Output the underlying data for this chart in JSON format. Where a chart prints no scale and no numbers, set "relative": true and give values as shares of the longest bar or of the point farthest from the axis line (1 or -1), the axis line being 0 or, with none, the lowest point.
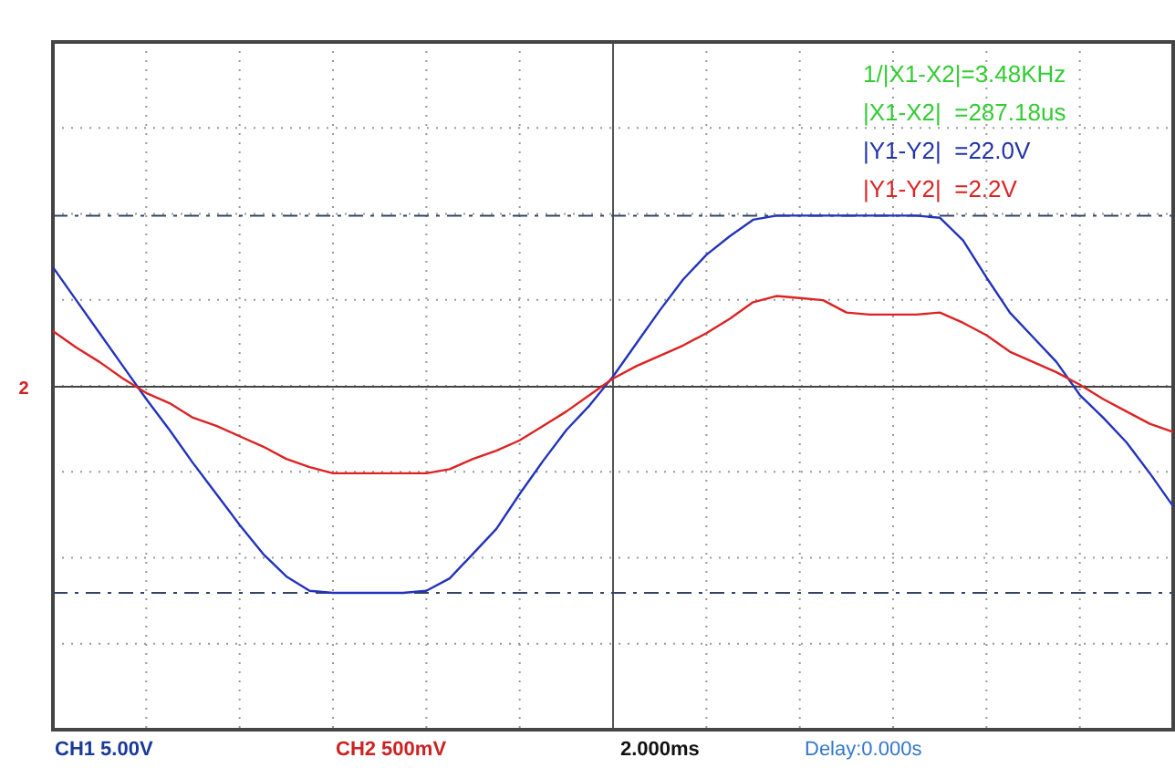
{
  "chart_data": {
    "type": "line",
    "relative": true,
    "grid": true,
    "marker": "none",
    "line_style": "solid",
    "categories": [
      null,
      null,
      null,
      null,
      null,
      null,
      null,
      null,
      null,
      null,
      null,
      null,
      null,
      null,
      null,
      null,
      null,
      null,
      null,
      null,
      null,
      null,
      null,
      null,
      null,
      null,
      null,
      null,
      null,
      null,
      null,
      null,
      null,
      null,
      null,
      null,
      null,
      null,
      null,
      null,
      null,
      null,
      null,
      null,
      null,
      null,
      null,
      null,
      null
    ],
    "series": [
      {
        "color": "#2233bb",
        "values": [
          0.58,
          0.42,
          0.26,
          0.1,
          -0.06,
          -0.21,
          -0.37,
          -0.52,
          -0.67,
          -0.81,
          -0.92,
          -0.99,
          -1,
          -1,
          -1,
          -1,
          -0.99,
          -0.93,
          -0.81,
          -0.69,
          -0.52,
          -0.36,
          -0.21,
          -0.09,
          0.05,
          0.21,
          0.37,
          0.52,
          0.64,
          0.73,
          0.81,
          0.83,
          0.83,
          0.83,
          0.83,
          0.83,
          0.83,
          0.83,
          0.82,
          0.71,
          0.53,
          0.36,
          0.24,
          0.12,
          -0.04,
          -0.15,
          -0.27,
          -0.42,
          -0.58
        ]
      },
      {
        "color": "#dd2222",
        "values": [
          0.27,
          0.19,
          0.12,
          0.04,
          -0.03,
          -0.08,
          -0.15,
          -0.19,
          -0.24,
          -0.29,
          -0.35,
          -0.39,
          -0.42,
          -0.42,
          -0.42,
          -0.42,
          -0.42,
          -0.4,
          -0.35,
          -0.31,
          -0.26,
          -0.19,
          -0.12,
          -0.04,
          0.04,
          0.1,
          0.15,
          0.2,
          0.26,
          0.33,
          0.41,
          0.44,
          0.43,
          0.42,
          0.36,
          0.35,
          0.35,
          0.35,
          0.36,
          0.31,
          0.25,
          0.17,
          0.12,
          0.07,
          0.01,
          -0.06,
          -0.12,
          -0.18,
          -0.22
        ]
      }
    ],
    "ref_lines": [
      {
        "axis": "y",
        "value": 0.83,
        "color": "#334466",
        "line_style": "dashed"
      },
      {
        "axis": "y",
        "value": -1,
        "color": "#334466",
        "line_style": "dashed"
      }
    ],
    "annotations": [
      "1/|X1-X2|=3.48KHz",
      "|X1-X2|  =287.18us",
      "|Y1-Y2|  =22.0V",
      "|Y1-Y2|  =2.2V",
      "CH1 5.00V",
      "CH2 500mV",
      "2.000ms",
      "Delay:0.000s",
      "2"
    ]
  }
}
